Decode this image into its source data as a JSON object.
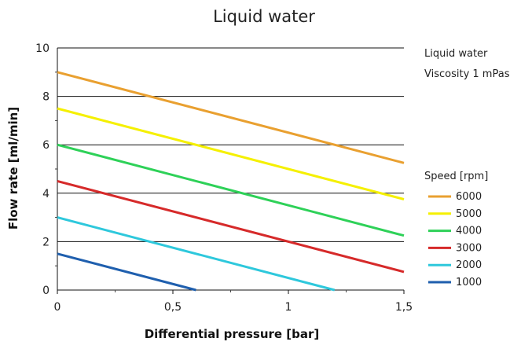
{
  "chart_data": {
    "type": "line",
    "title": "Liquid water",
    "xlabel": "Differential pressure [bar]",
    "ylabel": "Flow rate [ml/min]",
    "xlim": [
      0,
      1.5
    ],
    "ylim": [
      0,
      10
    ],
    "x_ticks": [
      "0",
      "0,5",
      "1",
      "1,5"
    ],
    "y_ticks": [
      "0",
      "2",
      "4",
      "6",
      "8",
      "10"
    ],
    "grid": "horizontal",
    "annotations": [
      "Liquid water",
      "Viscosity 1 mPas"
    ],
    "legend": {
      "title": "Speed [rpm]",
      "placement": "right"
    },
    "series": [
      {
        "name": "6000",
        "color": "#e9a030",
        "points": [
          [
            0,
            9.0
          ],
          [
            1.5,
            5.25
          ]
        ]
      },
      {
        "name": "5000",
        "color": "#f5f000",
        "points": [
          [
            0,
            7.5
          ],
          [
            1.5,
            3.75
          ]
        ]
      },
      {
        "name": "4000",
        "color": "#2ed158",
        "points": [
          [
            0,
            6.0
          ],
          [
            1.5,
            2.25
          ]
        ]
      },
      {
        "name": "3000",
        "color": "#d62a2a",
        "points": [
          [
            0,
            4.5
          ],
          [
            1.5,
            0.75
          ]
        ]
      },
      {
        "name": "2000",
        "color": "#2ec8dc",
        "points": [
          [
            0,
            3.0
          ],
          [
            1.2,
            0.0
          ]
        ]
      },
      {
        "name": "1000",
        "color": "#1f5fae",
        "points": [
          [
            0,
            1.5
          ],
          [
            0.6,
            0.0
          ]
        ]
      }
    ]
  }
}
